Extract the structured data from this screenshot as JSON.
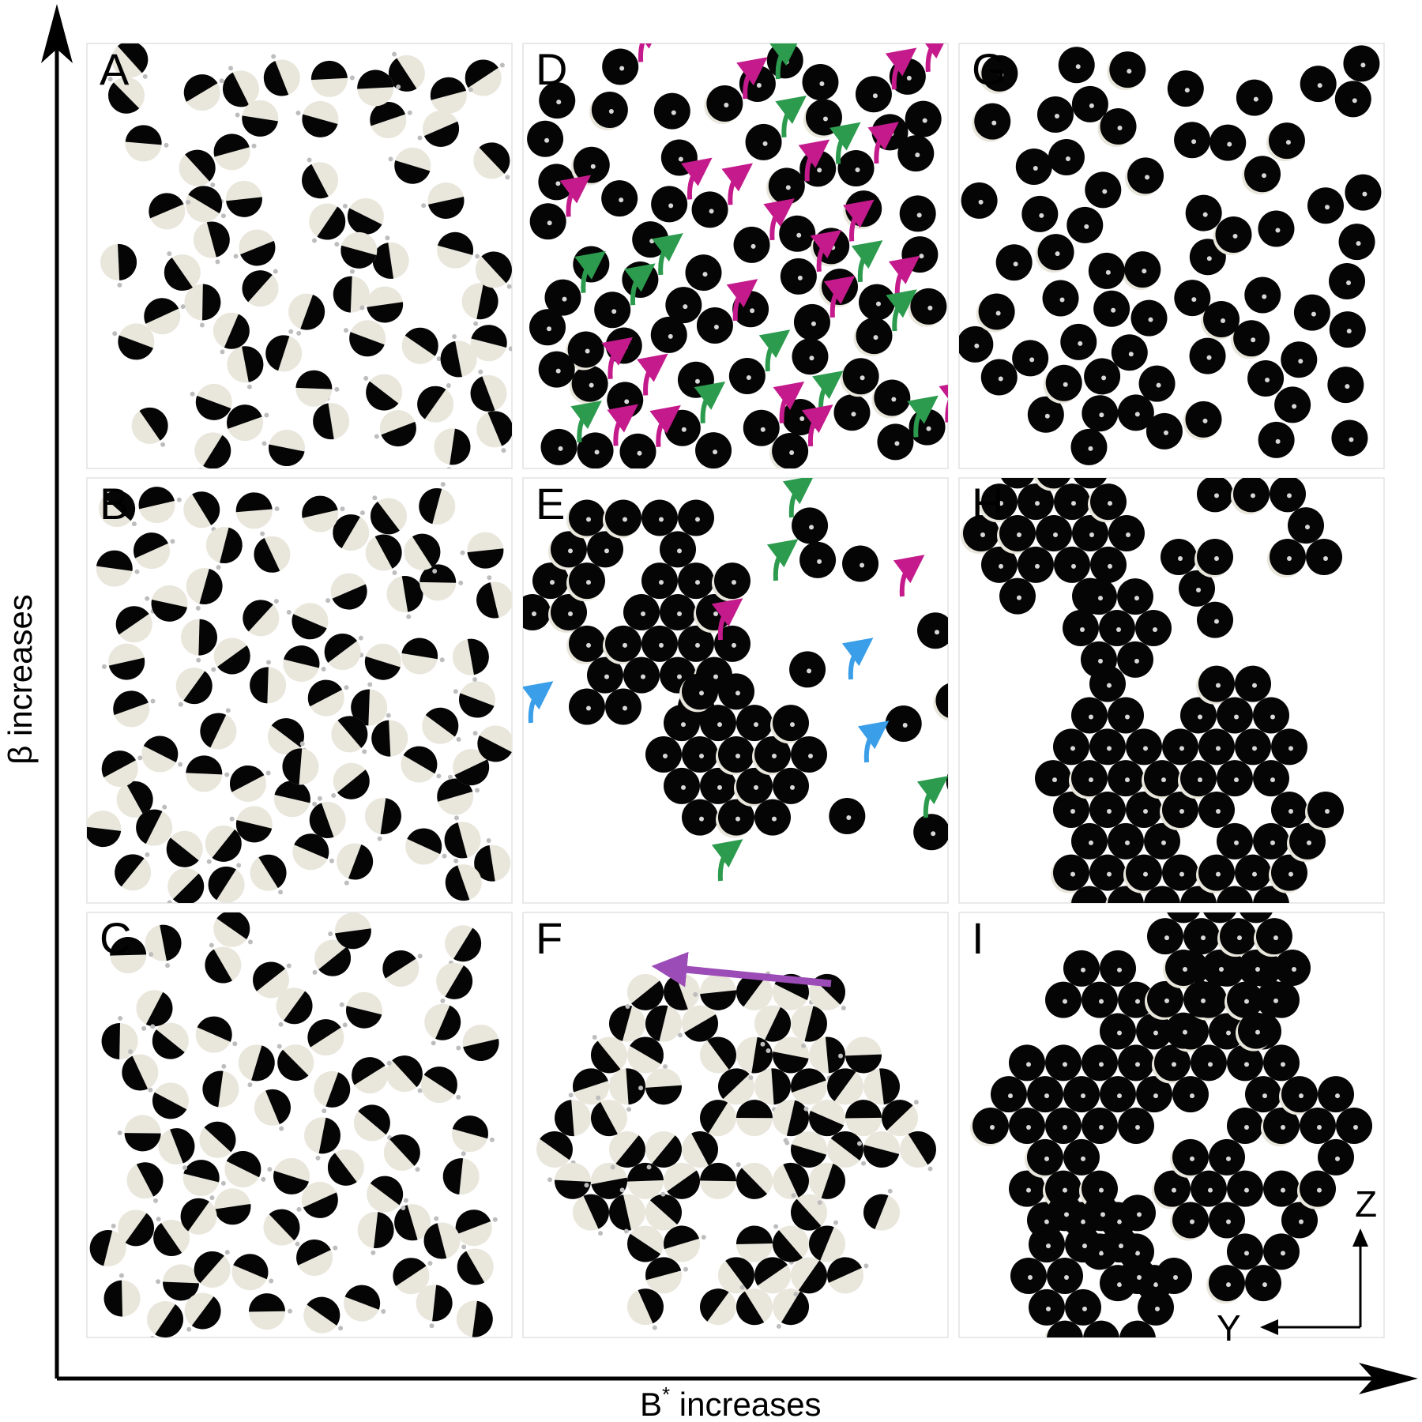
{
  "axes": {
    "x_label_main": "B",
    "x_label_sup": "*",
    "x_label_rest": " increases",
    "y_label": "β increases"
  },
  "coords": {
    "vertical": "Z",
    "horizontal": "Y"
  },
  "colors": {
    "particle_dark": "#050505",
    "particle_light": "#e9e6dc",
    "magenta_arrow": "#c41a8c",
    "green_arrow": "#2c9b4e",
    "blue_arrow": "#3a9ee8",
    "purple_arrow": "#9b4cb6"
  },
  "panels": [
    {
      "label": "A",
      "type": "janus",
      "seed": 11,
      "count": 62
    },
    {
      "label": "B",
      "type": "janus",
      "seed": 23,
      "count": 72
    },
    {
      "label": "C",
      "type": "janus",
      "seed": 37,
      "count": 68
    },
    {
      "label": "D",
      "type": "chains",
      "seed": 41,
      "count": 70
    },
    {
      "label": "E",
      "type": "clusters",
      "seed": 53,
      "count": 95
    },
    {
      "label": "F",
      "type": "crystal",
      "seed": 67,
      "count": 120
    },
    {
      "label": "G",
      "type": "dispersed",
      "seed": 71,
      "count": 66
    },
    {
      "label": "H",
      "type": "hex_clusters",
      "seed": 83,
      "count": 100
    },
    {
      "label": "I",
      "type": "big_crystal",
      "seed": 97,
      "count": 135
    }
  ]
}
